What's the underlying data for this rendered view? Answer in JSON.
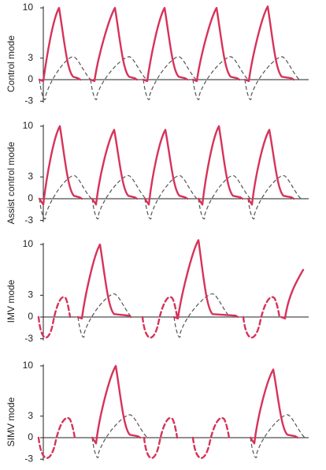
{
  "colors": {
    "pressure": "#d6335a",
    "flow": "#555555",
    "axis": "#222222"
  },
  "chart_data": [
    {
      "type": "line",
      "ylabel": "Control mode",
      "yticks": [
        10,
        3,
        0,
        -3
      ],
      "ylim": [
        -3,
        10
      ],
      "breaths": [
        {
          "start": 1,
          "peak_x": 20,
          "peak_y": 10,
          "end": 44,
          "kind": "mandatory"
        },
        {
          "start": 66,
          "peak_x": 91,
          "peak_y": 10,
          "end": 116,
          "kind": "mandatory"
        },
        {
          "start": 133,
          "peak_x": 154,
          "peak_y": 10,
          "end": 180,
          "kind": "mandatory"
        },
        {
          "start": 196,
          "peak_x": 220,
          "peak_y": 10,
          "end": 246,
          "kind": "mandatory"
        },
        {
          "start": 262,
          "peak_x": 285,
          "peak_y": 10.2,
          "end": 315,
          "kind": "mandatory"
        }
      ],
      "spontaneous": []
    },
    {
      "type": "line",
      "ylabel": "Assist control mode",
      "yticks": [
        10,
        3,
        0,
        -3
      ],
      "ylim": [
        -3,
        10
      ],
      "breaths": [
        {
          "start": 1,
          "peak_x": 21,
          "peak_y": 10,
          "end": 46,
          "kind": "assisted"
        },
        {
          "start": 68,
          "peak_x": 90,
          "peak_y": 9.5,
          "end": 116,
          "kind": "assisted"
        },
        {
          "start": 135,
          "peak_x": 155,
          "peak_y": 9.5,
          "end": 180,
          "kind": "assisted"
        },
        {
          "start": 203,
          "peak_x": 223,
          "peak_y": 10,
          "end": 250,
          "kind": "assisted"
        },
        {
          "start": 266,
          "peak_x": 287,
          "peak_y": 9.5,
          "end": 315,
          "kind": "assisted"
        }
      ],
      "spontaneous": []
    },
    {
      "type": "line",
      "ylabel": "IMV mode",
      "yticks": [
        10,
        3,
        0,
        -3
      ],
      "ylim": [
        -3,
        10
      ],
      "breaths": [
        {
          "start": 50,
          "peak_x": 72,
          "peak_y": 10,
          "end": 108,
          "kind": "mandatory"
        },
        {
          "start": 172,
          "peak_x": 197,
          "peak_y": 10.6,
          "end": 244,
          "kind": "mandatory"
        },
        {
          "start": 308,
          "peak_x": 330,
          "peak_y": 6.5,
          "end": 330,
          "kind": "mandatory"
        }
      ],
      "spontaneous": [
        {
          "start": -6,
          "end": 34
        },
        {
          "start": 126,
          "end": 170
        },
        {
          "start": 254,
          "end": 300
        }
      ]
    },
    {
      "type": "line",
      "ylabel": "SIMV mode",
      "yticks": [
        10,
        3,
        0,
        -3
      ],
      "ylim": [
        -3,
        10
      ],
      "breaths": [
        {
          "start": 68,
          "peak_x": 92,
          "peak_y": 10,
          "end": 120,
          "kind": "assisted"
        },
        {
          "start": 269,
          "peak_x": 292,
          "peak_y": 9.5,
          "end": 320,
          "kind": "assisted"
        }
      ],
      "spontaneous": [
        {
          "start": -6,
          "end": 40
        },
        {
          "start": 128,
          "end": 170
        },
        {
          "start": 190,
          "end": 236
        }
      ]
    }
  ]
}
